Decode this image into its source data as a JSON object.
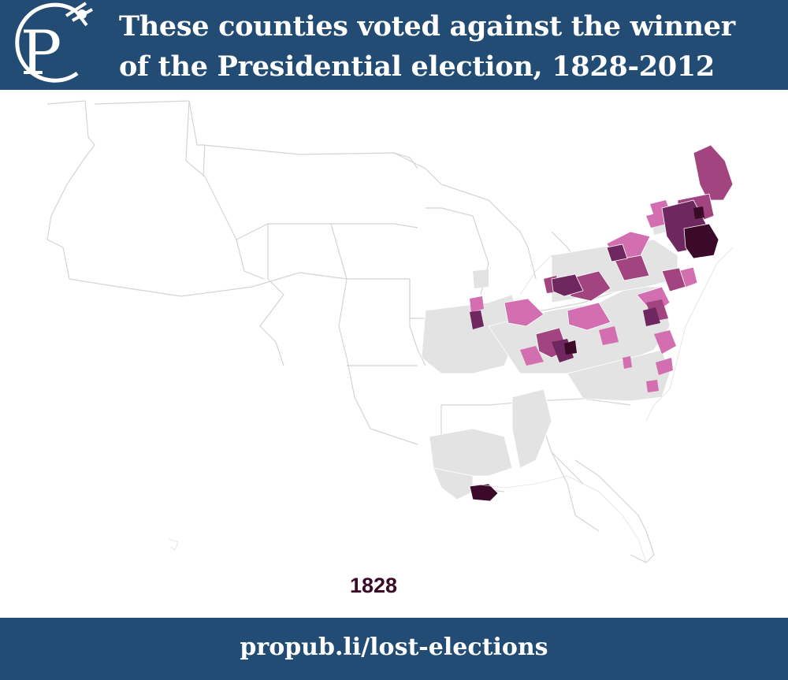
{
  "header": {
    "title_line1": "These counties voted against the winner",
    "title_line2": "of the Presidential election, 1828-2012",
    "logo_letter": "P",
    "logo_icon": "propublica-p-logo-icon"
  },
  "map": {
    "year": "1828",
    "colors": {
      "header_background": "#234c74",
      "outline": "#d4d4d4",
      "no_data_gray": "#e3e3e3",
      "light_magenta": "#d36fb0",
      "magenta": "#a2447f",
      "dark_purple": "#6f2760",
      "darkest_purple": "#3a0a28"
    },
    "highlighted_regions": [
      "new-england",
      "new-york",
      "pennsylvania",
      "new-jersey",
      "maryland",
      "delaware",
      "ohio",
      "kentucky",
      "virginia",
      "north-carolina",
      "louisiana"
    ]
  },
  "footer": {
    "url": "propub.li/lost-elections"
  }
}
